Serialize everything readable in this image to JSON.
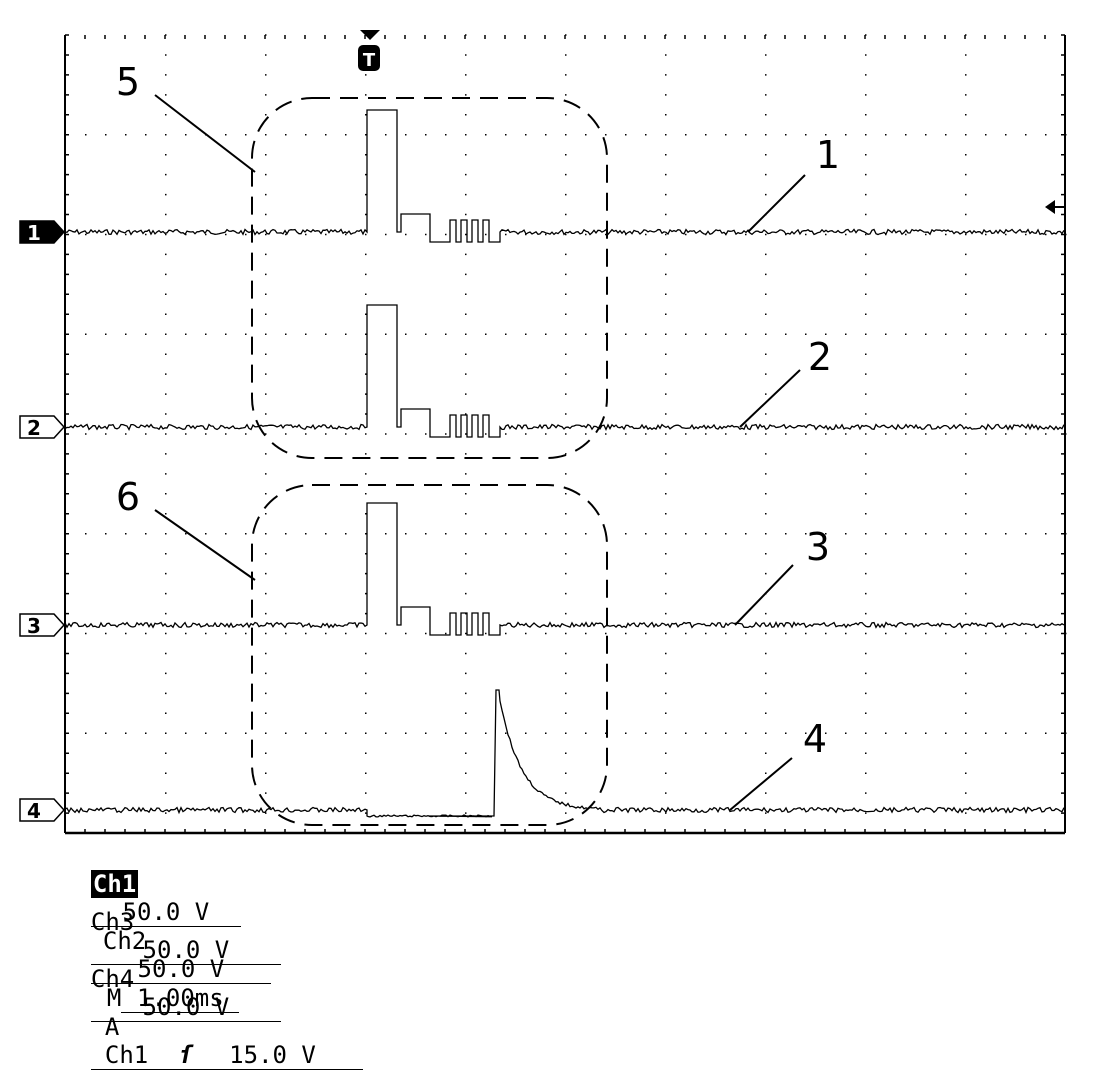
{
  "chart_data": {
    "type": "line",
    "title": "",
    "grid": true,
    "x_divisions": 10,
    "y_divisions": 8,
    "time_per_div": "1.00ms",
    "trigger_marker": "T",
    "channel_markers": [
      "1",
      "2",
      "3",
      "4"
    ],
    "series": [
      {
        "channel": "1",
        "label": "1",
        "description": "clean pulse burst"
      },
      {
        "channel": "2",
        "label": "2",
        "description": "clean pulse burst"
      },
      {
        "channel": "3",
        "label": "3",
        "description": "clean pulse burst"
      },
      {
        "channel": "4",
        "label": "4",
        "description": "delayed spike with decay"
      }
    ],
    "annotations": [
      {
        "label": "5",
        "target": "channels 1-2 region"
      },
      {
        "label": "6",
        "target": "channels 3-4 region"
      }
    ]
  },
  "status": {
    "row1": {
      "ch1_label": "Ch1",
      "ch1_value": "50.0 V",
      "ch2_label": "Ch2",
      "ch2_value": "50.0 V",
      "m_label": "M",
      "m_value": "1.00ms",
      "a_label": "A",
      "trig_ch": "Ch1",
      "trig_level": "15.0 V"
    },
    "row2": {
      "ch3_label": "Ch3",
      "ch3_value": "50.0 V",
      "ch4_label": "Ch4",
      "ch4_value": "50.0 V"
    }
  }
}
